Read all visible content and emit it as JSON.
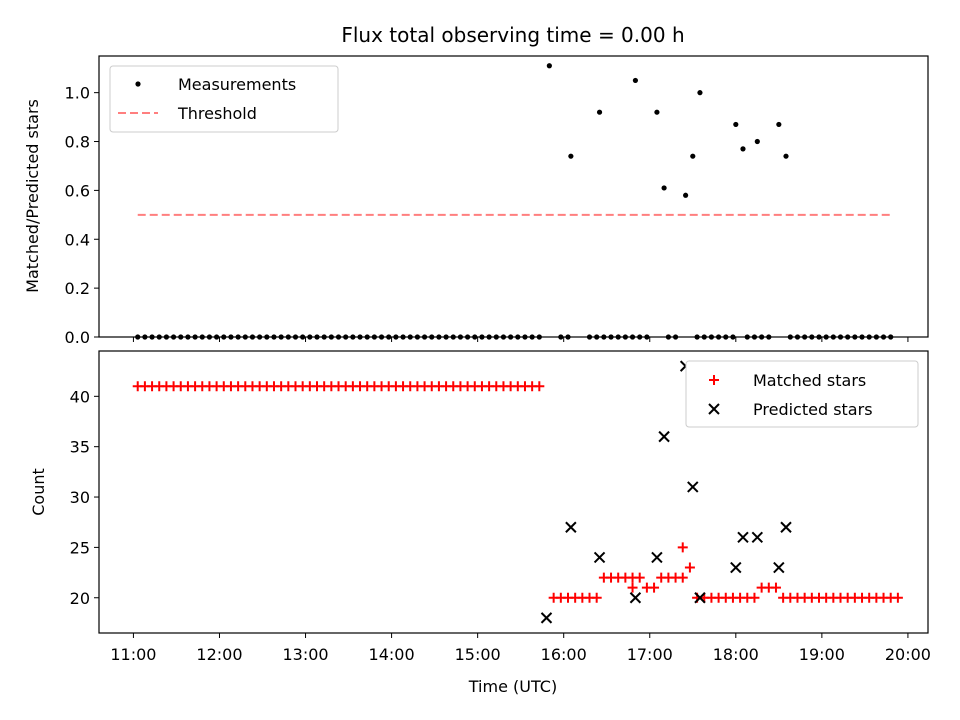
{
  "chart_data": [
    {
      "type": "scatter",
      "title": "Flux total observing time = 0.00 h",
      "ylabel": "Matched/Predicted stars",
      "xlabel": "",
      "ylim": [
        0,
        1.15
      ],
      "yticks": [
        0.0,
        0.2,
        0.4,
        0.6,
        0.8,
        1.0
      ],
      "ytick_labels": [
        "0.0",
        "0.2",
        "0.4",
        "0.6",
        "0.8",
        "1.0"
      ],
      "legend_position": "top-left",
      "colors": {
        "measurements": "#000000",
        "threshold": "#ff7f7f"
      },
      "series": [
        {
          "name": "Measurements",
          "marker": "dot",
          "zeros_x": [
            "11:03",
            "11:08",
            "11:13",
            "11:18",
            "11:23",
            "11:28",
            "11:33",
            "11:38",
            "11:43",
            "11:48",
            "11:53",
            "11:58",
            "12:03",
            "12:08",
            "12:13",
            "12:18",
            "12:23",
            "12:28",
            "12:33",
            "12:38",
            "12:43",
            "12:48",
            "12:53",
            "12:58",
            "13:03",
            "13:08",
            "13:13",
            "13:18",
            "13:23",
            "13:28",
            "13:33",
            "13:38",
            "13:43",
            "13:48",
            "13:53",
            "13:58",
            "14:03",
            "14:08",
            "14:13",
            "14:18",
            "14:23",
            "14:28",
            "14:33",
            "14:38",
            "14:43",
            "14:48",
            "14:53",
            "14:58",
            "15:03",
            "15:08",
            "15:13",
            "15:18",
            "15:23",
            "15:28",
            "15:33",
            "15:38",
            "15:43",
            "15:58",
            "16:03",
            "16:18",
            "16:23",
            "16:28",
            "16:33",
            "16:38",
            "16:43",
            "16:48",
            "16:53",
            "16:58",
            "17:13",
            "17:18",
            "17:33",
            "17:38",
            "17:43",
            "17:48",
            "17:53",
            "17:58",
            "18:08",
            "18:13",
            "18:18",
            "18:23",
            "18:38",
            "18:43",
            "18:48",
            "18:53",
            "18:58",
            "19:03",
            "19:08",
            "19:13",
            "19:18",
            "19:23",
            "19:28",
            "19:33",
            "19:38",
            "19:43",
            "19:48"
          ],
          "nonzero_points": [
            {
              "x": "15:50",
              "y": 1.11
            },
            {
              "x": "16:05",
              "y": 0.74
            },
            {
              "x": "16:25",
              "y": 0.92
            },
            {
              "x": "16:50",
              "y": 1.05
            },
            {
              "x": "17:05",
              "y": 0.92
            },
            {
              "x": "17:10",
              "y": 0.61
            },
            {
              "x": "17:25",
              "y": 0.58
            },
            {
              "x": "17:30",
              "y": 0.74
            },
            {
              "x": "17:35",
              "y": 1.0
            },
            {
              "x": "18:00",
              "y": 0.87
            },
            {
              "x": "18:05",
              "y": 0.77
            },
            {
              "x": "18:15",
              "y": 0.8
            },
            {
              "x": "18:30",
              "y": 0.87
            },
            {
              "x": "18:35",
              "y": 0.74
            }
          ]
        },
        {
          "name": "Threshold",
          "style": "dashed",
          "x": [
            "11:03",
            "19:48"
          ],
          "y": [
            0.5,
            0.5
          ]
        }
      ]
    },
    {
      "type": "scatter",
      "title": "",
      "ylabel": "Count",
      "xlabel": "Time (UTC)",
      "ylim": [
        16.5,
        44.5
      ],
      "yticks": [
        20,
        25,
        30,
        35,
        40
      ],
      "ytick_labels": [
        "20",
        "25",
        "30",
        "35",
        "40"
      ],
      "xlim": [
        "10:36",
        "20:14"
      ],
      "xticks": [
        "11:00",
        "12:00",
        "13:00",
        "14:00",
        "15:00",
        "16:00",
        "17:00",
        "18:00",
        "19:00",
        "20:00"
      ],
      "xtick_labels": [
        "11:00",
        "12:00",
        "13:00",
        "14:00",
        "15:00",
        "16:00",
        "17:00",
        "18:00",
        "19:00",
        "20:00"
      ],
      "legend_position": "top-right",
      "colors": {
        "matched": "#ff0000",
        "predicted": "#000000"
      },
      "series": [
        {
          "name": "Matched stars",
          "marker": "plus",
          "runs": [
            {
              "from": "11:03",
              "to": "15:43",
              "step_min": 5,
              "y": 41
            },
            {
              "from": "15:53",
              "to": "16:23",
              "step_min": 5,
              "y": 20
            },
            {
              "from": "16:28",
              "to": "16:53",
              "step_min": 5,
              "y": 22
            },
            {
              "from": "16:58",
              "to": "17:03",
              "step_min": 5,
              "y": 21
            },
            {
              "from": "17:08",
              "to": "17:23",
              "step_min": 5,
              "y": 22
            },
            {
              "from": "17:38",
              "to": "17:43",
              "step_min": 5,
              "y": 20
            },
            {
              "from": "17:48",
              "to": "18:13",
              "step_min": 5,
              "y": 20
            },
            {
              "from": "18:18",
              "to": "18:28",
              "step_min": 5,
              "y": 21
            },
            {
              "from": "18:33",
              "to": "19:53",
              "step_min": 5,
              "y": 20
            }
          ],
          "extra_points": [
            {
              "x": "16:48",
              "y": 21
            },
            {
              "x": "17:23",
              "y": 25
            },
            {
              "x": "17:28",
              "y": 23
            },
            {
              "x": "17:33",
              "y": 20
            }
          ]
        },
        {
          "name": "Predicted stars",
          "marker": "x",
          "points": [
            {
              "x": "15:48",
              "y": 18
            },
            {
              "x": "16:05",
              "y": 27
            },
            {
              "x": "16:25",
              "y": 24
            },
            {
              "x": "16:50",
              "y": 20
            },
            {
              "x": "17:05",
              "y": 24
            },
            {
              "x": "17:10",
              "y": 36
            },
            {
              "x": "17:25",
              "y": 43
            },
            {
              "x": "17:30",
              "y": 31
            },
            {
              "x": "17:35",
              "y": 20
            },
            {
              "x": "18:00",
              "y": 23
            },
            {
              "x": "18:05",
              "y": 26
            },
            {
              "x": "18:15",
              "y": 26
            },
            {
              "x": "18:30",
              "y": 23
            },
            {
              "x": "18:35",
              "y": 27
            }
          ]
        }
      ]
    }
  ]
}
